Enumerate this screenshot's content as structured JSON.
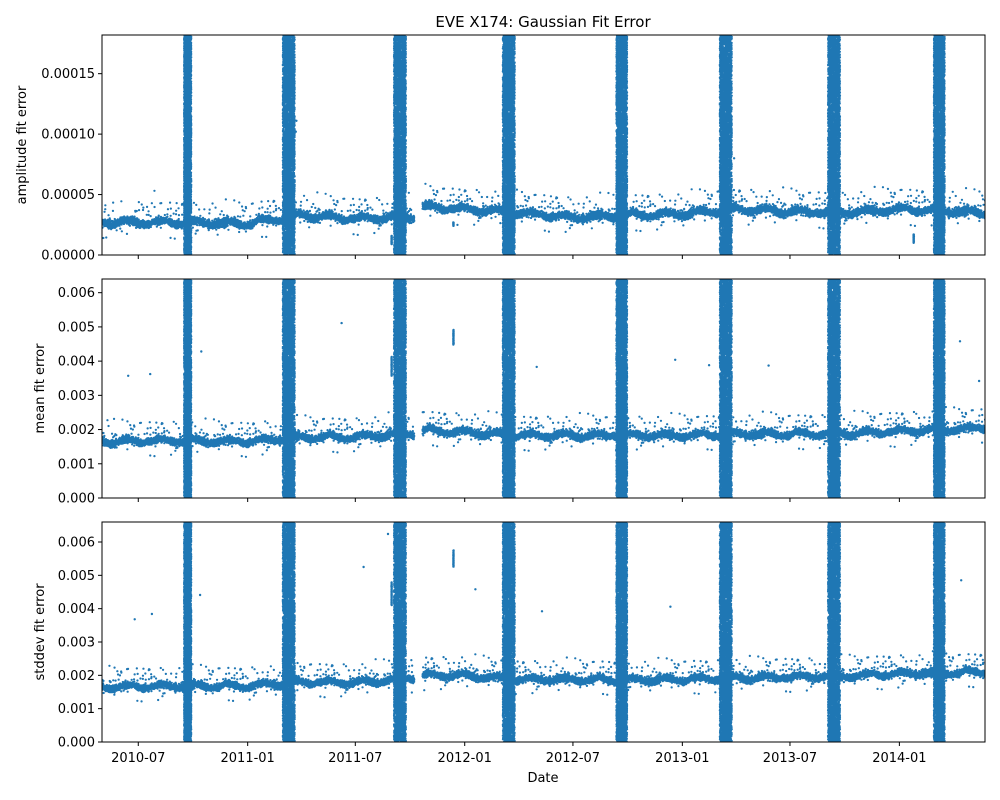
{
  "chart_data": {
    "type": "scatter",
    "title": "EVE X174: Gaussian Fit Error",
    "xlabel": "Date",
    "x_range": [
      "2010-05-01",
      "2014-05-25"
    ],
    "x_ticks": [
      "2010-07",
      "2011-01",
      "2011-07",
      "2012-01",
      "2012-07",
      "2013-01",
      "2013-07",
      "2014-01"
    ],
    "marker_color": "#1f77b4",
    "grid": false,
    "legend": "none",
    "data_gap": [
      "2011-10-08",
      "2011-10-22"
    ],
    "eclipse_seasons": [
      {
        "center": "2010-09-22",
        "half_days": 6
      },
      {
        "center": "2011-03-11",
        "half_days": 10
      },
      {
        "center": "2011-09-14",
        "half_days": 10
      },
      {
        "center": "2012-03-15",
        "half_days": 10
      },
      {
        "center": "2012-09-21",
        "half_days": 9
      },
      {
        "center": "2013-03-15",
        "half_days": 10
      },
      {
        "center": "2013-09-13",
        "half_days": 10
      },
      {
        "center": "2014-03-09",
        "half_days": 9
      }
    ],
    "panels": [
      {
        "ylabel": "amplitude fit error",
        "ylim": [
          0,
          0.000182
        ],
        "yticks": [
          0,
          5e-05,
          0.0001,
          0.00015
        ],
        "ytick_labels": [
          "0.00000",
          "0.00005",
          "0.00010",
          "0.00015"
        ],
        "baseline": [
          [
            "2010-05-01",
            2.7e-05
          ],
          [
            "2010-09-01",
            2.7e-05
          ],
          [
            "2011-01-01",
            2.6e-05
          ],
          [
            "2011-04-01",
            3.3e-05
          ],
          [
            "2011-07-01",
            3e-05
          ],
          [
            "2011-10-08",
            3.2e-05
          ],
          [
            "2011-10-22",
            4e-05
          ],
          [
            "2012-01-01",
            3.8e-05
          ],
          [
            "2012-04-01",
            3.5e-05
          ],
          [
            "2012-07-01",
            3.1e-05
          ],
          [
            "2012-10-01",
            3.3e-05
          ],
          [
            "2013-01-01",
            3.4e-05
          ],
          [
            "2013-04-01",
            3.8e-05
          ],
          [
            "2013-07-01",
            3.6e-05
          ],
          [
            "2013-10-01",
            3.5e-05
          ],
          [
            "2014-01-01",
            3.8e-05
          ],
          [
            "2014-05-25",
            3.5e-05
          ]
        ],
        "spread": 3e-06,
        "outliers": [
          [
            "2010-09-25",
            0.000151
          ],
          [
            "2010-09-26",
            0.000132
          ],
          [
            "2010-09-26",
            0.000129
          ],
          [
            "2010-09-25",
            0.000112
          ],
          [
            "2010-09-22",
            9.7e-05
          ],
          [
            "2011-03-17",
            0.00017
          ],
          [
            "2011-03-19",
            0.000143
          ],
          [
            "2011-03-24",
            0.000111
          ],
          [
            "2011-03-23",
            0.000102
          ],
          [
            "2011-03-15",
            8.7e-05
          ],
          [
            "2011-09-18",
            0.000172
          ],
          [
            "2011-09-19",
            0.000168
          ],
          [
            "2011-09-20",
            0.000162
          ],
          [
            "2011-09-19",
            0.000157
          ],
          [
            "2011-09-22",
            0.000124
          ],
          [
            "2011-09-20",
            0.000122
          ],
          [
            "2012-03-08",
            0.000179
          ],
          [
            "2012-03-10",
            0.000167
          ],
          [
            "2012-03-11",
            0.000133
          ],
          [
            "2012-03-08",
            8.7e-05
          ],
          [
            "2012-09-22",
            0.00012
          ],
          [
            "2012-09-26",
            0.000111
          ],
          [
            "2013-03-06",
            0.000161
          ],
          [
            "2013-03-29",
            8e-05
          ],
          [
            "2014-03-01",
            8.2e-05
          ]
        ],
        "tracks": [
          [
            "2011-08-31",
            1.25e-05,
            3.5e-06
          ],
          [
            "2011-12-13",
            2.55e-05,
            1.5e-06
          ],
          [
            "2014-01-25",
            1.35e-05,
            3.5e-06
          ]
        ]
      },
      {
        "ylabel": "mean fit error",
        "ylim": [
          0,
          0.0064
        ],
        "yticks": [
          0,
          0.001,
          0.002,
          0.003,
          0.004,
          0.005,
          0.006
        ],
        "ytick_labels": [
          "0.000",
          "0.001",
          "0.002",
          "0.003",
          "0.004",
          "0.005",
          "0.006"
        ],
        "baseline": [
          [
            "2010-05-01",
            0.00165
          ],
          [
            "2010-09-01",
            0.00168
          ],
          [
            "2011-01-01",
            0.00165
          ],
          [
            "2011-04-01",
            0.00178
          ],
          [
            "2011-07-01",
            0.00178
          ],
          [
            "2011-10-08",
            0.0019
          ],
          [
            "2011-10-22",
            0.00198
          ],
          [
            "2012-01-01",
            0.00192
          ],
          [
            "2012-04-01",
            0.00183
          ],
          [
            "2012-07-01",
            0.00183
          ],
          [
            "2012-10-01",
            0.00183
          ],
          [
            "2013-01-01",
            0.00183
          ],
          [
            "2013-04-01",
            0.00187
          ],
          [
            "2013-07-01",
            0.00187
          ],
          [
            "2013-10-01",
            0.00188
          ],
          [
            "2014-01-01",
            0.00195
          ],
          [
            "2014-05-25",
            0.00205
          ]
        ],
        "spread": 0.0001,
        "outliers": [
          [
            "2010-06-14",
            0.00357
          ],
          [
            "2010-07-21",
            0.00362
          ],
          [
            "2010-10-15",
            0.00428
          ],
          [
            "2011-06-08",
            0.00511
          ],
          [
            "2012-05-01",
            0.00383
          ],
          [
            "2012-12-20",
            0.00404
          ],
          [
            "2013-02-15",
            0.00388
          ],
          [
            "2013-05-26",
            0.00387
          ],
          [
            "2014-04-13",
            0.00458
          ],
          [
            "2014-05-15",
            0.00342
          ]
        ],
        "tracks": [
          [
            "2011-08-31",
            0.00385,
            0.00028
          ],
          [
            "2011-12-13",
            0.0047,
            0.00022
          ]
        ]
      },
      {
        "ylabel": "stddev fit error",
        "ylim": [
          0,
          0.0066
        ],
        "yticks": [
          0,
          0.001,
          0.002,
          0.003,
          0.004,
          0.005,
          0.006
        ],
        "ytick_labels": [
          "0.000",
          "0.001",
          "0.002",
          "0.003",
          "0.004",
          "0.005",
          "0.006"
        ],
        "baseline": [
          [
            "2010-05-01",
            0.00165
          ],
          [
            "2010-09-01",
            0.00168
          ],
          [
            "2011-01-01",
            0.00168
          ],
          [
            "2011-04-01",
            0.0018
          ],
          [
            "2011-07-01",
            0.00178
          ],
          [
            "2011-10-08",
            0.00192
          ],
          [
            "2011-10-22",
            0.002
          ],
          [
            "2012-01-01",
            0.002
          ],
          [
            "2012-04-01",
            0.00188
          ],
          [
            "2012-07-01",
            0.00188
          ],
          [
            "2012-10-01",
            0.00186
          ],
          [
            "2013-01-01",
            0.00188
          ],
          [
            "2013-04-01",
            0.00192
          ],
          [
            "2013-07-01",
            0.00195
          ],
          [
            "2013-10-01",
            0.00198
          ],
          [
            "2014-01-01",
            0.00205
          ],
          [
            "2014-05-25",
            0.0021
          ]
        ],
        "spread": 0.0001,
        "outliers": [
          [
            "2010-06-25",
            0.00368
          ],
          [
            "2010-07-24",
            0.00384
          ],
          [
            "2010-10-13",
            0.00441
          ],
          [
            "2011-07-15",
            0.00525
          ],
          [
            "2011-08-25",
            0.00624
          ],
          [
            "2012-01-19",
            0.00458
          ],
          [
            "2012-05-10",
            0.00392
          ],
          [
            "2012-12-12",
            0.00406
          ],
          [
            "2014-04-15",
            0.00485
          ]
        ],
        "tracks": [
          [
            "2011-08-31",
            0.00445,
            0.00035
          ],
          [
            "2011-12-13",
            0.0055,
            0.00025
          ]
        ]
      }
    ]
  }
}
